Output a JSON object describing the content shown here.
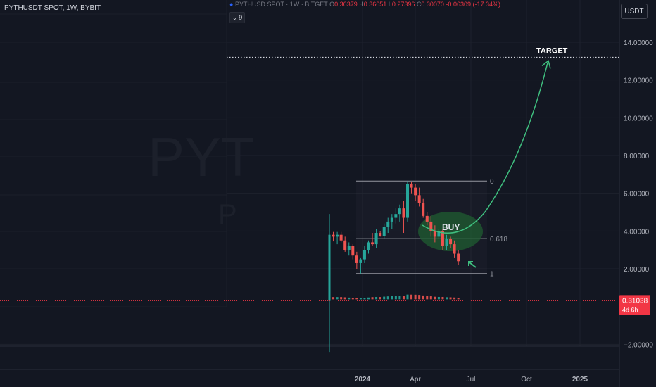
{
  "header": {
    "left_title": "PYTHUSDT SPOT, 1W, BYBIT",
    "overlay_symbol": "PYTHUSD SPOT · 1W · BITGET",
    "ohlc": {
      "o_key": "O",
      "o": "0.36379",
      "h_key": "H",
      "h": "0.36651",
      "l_key": "L",
      "l": "0.27396",
      "c_key": "C",
      "c": "0.30070",
      "change": "-0.06309 (-17.34%)"
    },
    "indicator_count": "9"
  },
  "watermark": {
    "text": "PYT",
    "sub": "P"
  },
  "price_unit": "USDT",
  "current_price": {
    "value": "0.31038",
    "countdown": "4d 6h"
  },
  "annotations": {
    "target": "TARGET",
    "buy": "BUY",
    "fib_0": "0",
    "fib_618": "0.618",
    "fib_1": "1"
  },
  "colors": {
    "up": "#26a69a",
    "down": "#ef5350",
    "arrow": "#3fbf7f",
    "buy_zone": "#1f5e32",
    "bg": "#131722"
  },
  "chart_data": {
    "type": "candlestick",
    "y_ticks": [
      "14.00000",
      "12.00000",
      "10.00000",
      "8.00000",
      "6.00000",
      "4.00000",
      "2.00000",
      "−2.00000"
    ],
    "y_tick_values": [
      14,
      12,
      10,
      8,
      6,
      4,
      2,
      -2
    ],
    "ylim": [
      -2.4,
      15.8
    ],
    "x_ticks": [
      "2024",
      "Apr",
      "Jul",
      "Oct",
      "2025"
    ],
    "target_level": 13.2,
    "fib_levels": {
      "0": 6.65,
      "0.618": 3.6,
      "1": 1.75
    },
    "candles": [
      {
        "o": 0.3,
        "h": 4.9,
        "l": -2.4,
        "c": 3.8
      },
      {
        "o": 3.8,
        "h": 3.95,
        "l": 3.45,
        "c": 3.7
      },
      {
        "o": 3.7,
        "h": 3.95,
        "l": 3.3,
        "c": 3.8
      },
      {
        "o": 3.8,
        "h": 3.95,
        "l": 3.4,
        "c": 3.5
      },
      {
        "o": 3.5,
        "h": 3.7,
        "l": 2.9,
        "c": 3.0
      },
      {
        "o": 3.0,
        "h": 3.4,
        "l": 2.7,
        "c": 3.2
      },
      {
        "o": 3.2,
        "h": 3.3,
        "l": 2.5,
        "c": 2.7
      },
      {
        "o": 2.7,
        "h": 2.9,
        "l": 2.0,
        "c": 2.3
      },
      {
        "o": 2.3,
        "h": 2.6,
        "l": 1.75,
        "c": 2.5
      },
      {
        "o": 2.5,
        "h": 3.2,
        "l": 2.3,
        "c": 3.0
      },
      {
        "o": 3.0,
        "h": 3.5,
        "l": 2.8,
        "c": 3.4
      },
      {
        "o": 3.4,
        "h": 3.9,
        "l": 3.2,
        "c": 3.3
      },
      {
        "o": 3.3,
        "h": 4.1,
        "l": 3.1,
        "c": 3.9
      },
      {
        "o": 3.9,
        "h": 4.0,
        "l": 3.7,
        "c": 3.75
      },
      {
        "o": 3.75,
        "h": 4.4,
        "l": 3.6,
        "c": 4.2
      },
      {
        "o": 4.2,
        "h": 4.7,
        "l": 3.9,
        "c": 4.5
      },
      {
        "o": 4.5,
        "h": 4.9,
        "l": 4.1,
        "c": 4.7
      },
      {
        "o": 4.7,
        "h": 5.2,
        "l": 4.4,
        "c": 4.9
      },
      {
        "o": 4.9,
        "h": 5.4,
        "l": 4.5,
        "c": 5.2
      },
      {
        "o": 5.2,
        "h": 5.6,
        "l": 3.9,
        "c": 4.7
      },
      {
        "o": 4.7,
        "h": 6.65,
        "l": 4.5,
        "c": 6.5
      },
      {
        "o": 6.5,
        "h": 6.6,
        "l": 6.0,
        "c": 6.3
      },
      {
        "o": 6.3,
        "h": 6.5,
        "l": 5.6,
        "c": 5.9
      },
      {
        "o": 5.9,
        "h": 6.3,
        "l": 5.3,
        "c": 5.5
      },
      {
        "o": 5.5,
        "h": 5.7,
        "l": 4.7,
        "c": 4.8
      },
      {
        "o": 4.8,
        "h": 5.0,
        "l": 4.3,
        "c": 4.5
      },
      {
        "o": 4.5,
        "h": 4.8,
        "l": 3.7,
        "c": 4.0
      },
      {
        "o": 4.0,
        "h": 4.3,
        "l": 3.4,
        "c": 3.7
      },
      {
        "o": 3.7,
        "h": 4.1,
        "l": 3.6,
        "c": 4.0
      },
      {
        "o": 4.0,
        "h": 4.1,
        "l": 3.0,
        "c": 3.2
      },
      {
        "o": 3.2,
        "h": 3.8,
        "l": 3.0,
        "c": 3.6
      },
      {
        "o": 3.6,
        "h": 3.7,
        "l": 3.1,
        "c": 3.3
      },
      {
        "o": 3.3,
        "h": 3.5,
        "l": 2.6,
        "c": 2.8
      },
      {
        "o": 2.8,
        "h": 3.0,
        "l": 2.2,
        "c": 2.4
      }
    ]
  }
}
